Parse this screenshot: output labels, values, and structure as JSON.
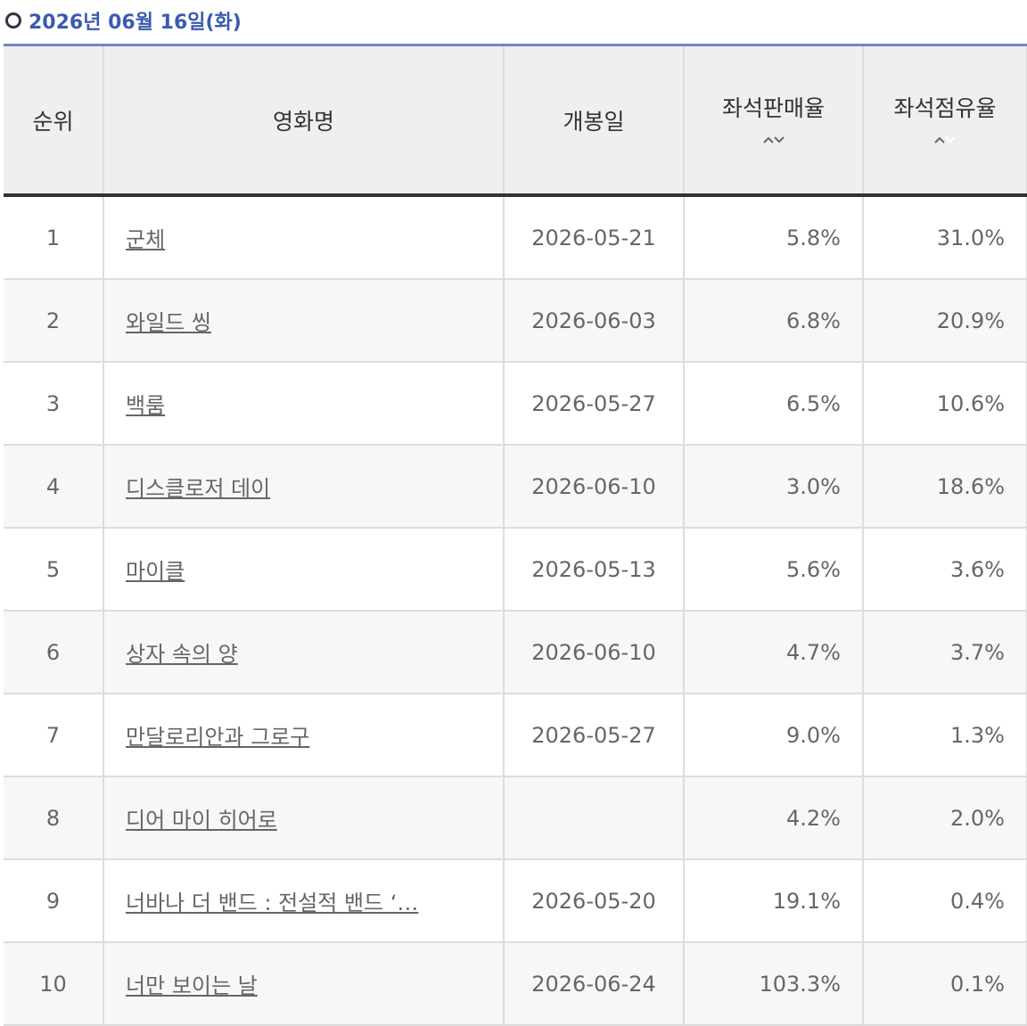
{
  "header": {
    "date": "2026년 06월 16일(화)"
  },
  "table": {
    "columns": [
      "순위",
      "영화명",
      "개봉일",
      "좌석판매율",
      "좌석점유율"
    ],
    "rows": [
      [
        "1",
        "군체",
        "2026-05-21",
        "5.8%",
        "31.0%"
      ],
      [
        "2",
        "와일드 씽",
        "2026-06-03",
        "6.8%",
        "20.9%"
      ],
      [
        "3",
        "백룸",
        "2026-05-27",
        "6.5%",
        "10.6%"
      ],
      [
        "4",
        "디스클로저 데이",
        "2026-06-10",
        "3.0%",
        "18.6%"
      ],
      [
        "5",
        "마이클",
        "2026-05-13",
        "5.6%",
        "3.6%"
      ],
      [
        "6",
        "상자 속의 양",
        "2026-06-10",
        "4.7%",
        "3.7%"
      ],
      [
        "7",
        "만달로리안과 그로구",
        "2026-05-27",
        "9.0%",
        "1.3%"
      ],
      [
        "8",
        "디어 마이 히어로",
        null,
        "4.2%",
        "2.0%"
      ],
      [
        "9",
        "너바나 더 밴드 : 전설적 밴드 ‘…",
        "2026-05-20",
        "19.1%",
        "0.4%"
      ],
      [
        "10",
        "너만 보이는 날",
        "2026-06-24",
        "103.3%",
        "0.1%"
      ]
    ]
  }
}
